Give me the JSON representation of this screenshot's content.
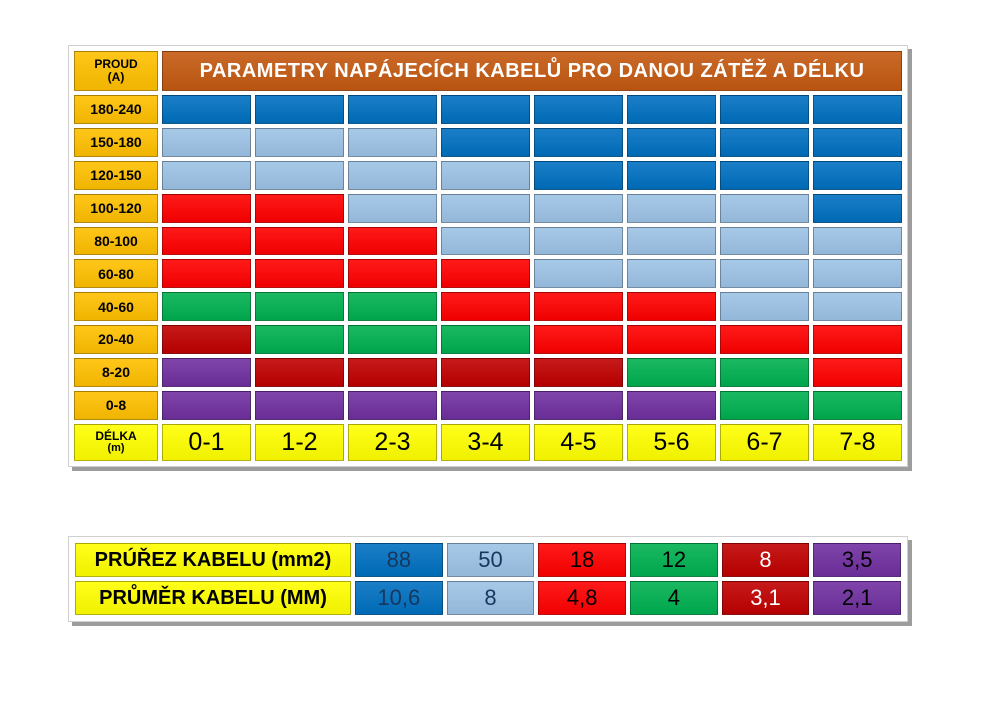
{
  "colors": {
    "D": "#0070C0",
    "L": "#9DC3E6",
    "R": "#FF0000",
    "G": "#00B050",
    "K": "#C00000",
    "P": "#7030A0",
    "gold": "#FFC000",
    "yellow": "#FFFF00",
    "title_bg": "#C45911",
    "shadow": "#9D9D9D"
  },
  "main_table": {
    "corner": {
      "line1": "PROUD",
      "line2": "(A)"
    },
    "title": "PARAMETRY NAPÁJECÍCH KABELŮ PRO DANOU ZÁTĚŽ A DÉLKU",
    "rows": [
      {
        "label": "180-240",
        "cells": [
          "D",
          "D",
          "D",
          "D",
          "D",
          "D",
          "D",
          "D"
        ]
      },
      {
        "label": "150-180",
        "cells": [
          "L",
          "L",
          "L",
          "D",
          "D",
          "D",
          "D",
          "D"
        ]
      },
      {
        "label": "120-150",
        "cells": [
          "L",
          "L",
          "L",
          "L",
          "D",
          "D",
          "D",
          "D"
        ]
      },
      {
        "label": "100-120",
        "cells": [
          "R",
          "R",
          "L",
          "L",
          "L",
          "L",
          "L",
          "D"
        ]
      },
      {
        "label": "80-100",
        "cells": [
          "R",
          "R",
          "R",
          "L",
          "L",
          "L",
          "L",
          "L"
        ]
      },
      {
        "label": "60-80",
        "cells": [
          "R",
          "R",
          "R",
          "R",
          "L",
          "L",
          "L",
          "L"
        ]
      },
      {
        "label": "40-60",
        "cells": [
          "G",
          "G",
          "G",
          "R",
          "R",
          "R",
          "L",
          "L"
        ]
      },
      {
        "label": "20-40",
        "cells": [
          "K",
          "G",
          "G",
          "G",
          "R",
          "R",
          "R",
          "R"
        ]
      },
      {
        "label": "8-20",
        "cells": [
          "P",
          "K",
          "K",
          "K",
          "K",
          "G",
          "G",
          "R"
        ]
      },
      {
        "label": "0-8",
        "cells": [
          "P",
          "P",
          "P",
          "P",
          "P",
          "P",
          "G",
          "G"
        ]
      }
    ],
    "footer": {
      "line1": "DÉLKA",
      "line2": "(m)",
      "cells": [
        "0-1",
        "1-2",
        "2-3",
        "3-4",
        "4-5",
        "5-6",
        "6-7",
        "7-8"
      ]
    }
  },
  "legend_table": {
    "rows": [
      {
        "label": "PRÚŘEZ KABELU (mm2)",
        "values": [
          {
            "text": "88",
            "color": "D",
            "text_color": "#17375E"
          },
          {
            "text": "50",
            "color": "L",
            "text_color": "#17375E"
          },
          {
            "text": "18",
            "color": "R",
            "text_color": "#000000"
          },
          {
            "text": "12",
            "color": "G",
            "text_color": "#000000"
          },
          {
            "text": "8",
            "color": "K",
            "text_color": "#FFFFFF"
          },
          {
            "text": "3,5",
            "color": "P",
            "text_color": "#000000"
          }
        ]
      },
      {
        "label": "PRŮMĚR KABELU (MM)",
        "values": [
          {
            "text": "10,6",
            "color": "D",
            "text_color": "#17375E"
          },
          {
            "text": "8",
            "color": "L",
            "text_color": "#17375E"
          },
          {
            "text": "4,8",
            "color": "R",
            "text_color": "#000000"
          },
          {
            "text": "4",
            "color": "G",
            "text_color": "#000000"
          },
          {
            "text": "3,1",
            "color": "K",
            "text_color": "#FFFFFF"
          },
          {
            "text": "2,1",
            "color": "P",
            "text_color": "#000000"
          }
        ]
      }
    ]
  },
  "chart_data": {
    "type": "heatmap",
    "title": "PARAMETRY NAPÁJECÍCH KABELŮ PRO DANOU ZÁTĚŽ A DÉLKU",
    "xlabel": "DÉLKA (m)",
    "ylabel": "PROUD (A)",
    "x_categories": [
      "0-1",
      "1-2",
      "2-3",
      "3-4",
      "4-5",
      "5-6",
      "6-7",
      "7-8"
    ],
    "y_categories": [
      "180-240",
      "150-180",
      "120-150",
      "100-120",
      "80-100",
      "60-80",
      "40-60",
      "20-40",
      "8-20",
      "0-8"
    ],
    "matrix_cross_section_mm2": [
      [
        88,
        88,
        88,
        88,
        88,
        88,
        88,
        88
      ],
      [
        50,
        50,
        50,
        88,
        88,
        88,
        88,
        88
      ],
      [
        50,
        50,
        50,
        50,
        88,
        88,
        88,
        88
      ],
      [
        18,
        18,
        50,
        50,
        50,
        50,
        50,
        88
      ],
      [
        18,
        18,
        18,
        50,
        50,
        50,
        50,
        50
      ],
      [
        18,
        18,
        18,
        18,
        50,
        50,
        50,
        50
      ],
      [
        12,
        12,
        12,
        18,
        18,
        18,
        50,
        50
      ],
      [
        8,
        12,
        12,
        12,
        18,
        18,
        18,
        18
      ],
      [
        3.5,
        8,
        8,
        8,
        8,
        12,
        12,
        18
      ],
      [
        3.5,
        3.5,
        3.5,
        3.5,
        3.5,
        3.5,
        12,
        12
      ]
    ],
    "legend": {
      "cross_section_mm2": [
        88,
        50,
        18,
        12,
        8,
        3.5
      ],
      "diameter_mm": [
        10.6,
        8,
        4.8,
        4,
        3.1,
        2.1
      ],
      "colors": [
        "#0070C0",
        "#9DC3E6",
        "#FF0000",
        "#00B050",
        "#C00000",
        "#7030A0"
      ]
    },
    "grid": false,
    "legend_position": "bottom"
  }
}
